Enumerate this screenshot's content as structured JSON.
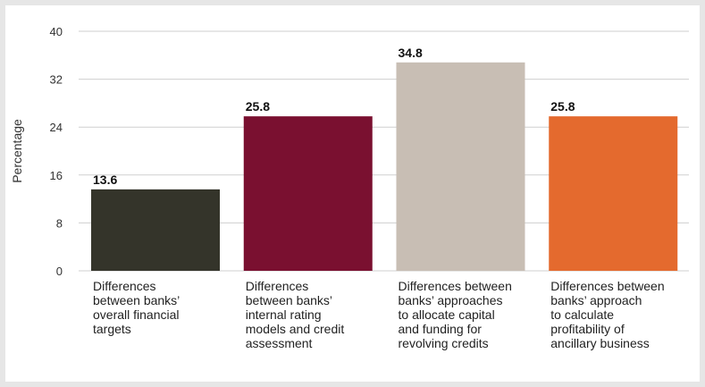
{
  "chart_data": {
    "type": "bar",
    "ylabel": "Percentage",
    "ylim": [
      0,
      40
    ],
    "yticks": [
      0,
      8,
      16,
      24,
      32,
      40
    ],
    "grid": true,
    "categories": [
      [
        "Differences",
        "between banks’",
        "overall financial",
        "targets"
      ],
      [
        "Differences",
        "between banks’",
        "internal rating",
        "models and credit",
        "assessment"
      ],
      [
        "Differences between",
        "banks’ approaches",
        "to allocate capital",
        "and funding for",
        "revolving credits"
      ],
      [
        "Differences between",
        "banks’ approach",
        "to calculate",
        "profitability of",
        "ancillary business"
      ]
    ],
    "values": [
      13.6,
      25.8,
      34.8,
      25.8
    ],
    "value_labels": [
      "13.6",
      "25.8",
      "34.8",
      "25.8"
    ],
    "colors": [
      "#34342a",
      "#7a1030",
      "#c8beb4",
      "#e46a2e"
    ]
  }
}
